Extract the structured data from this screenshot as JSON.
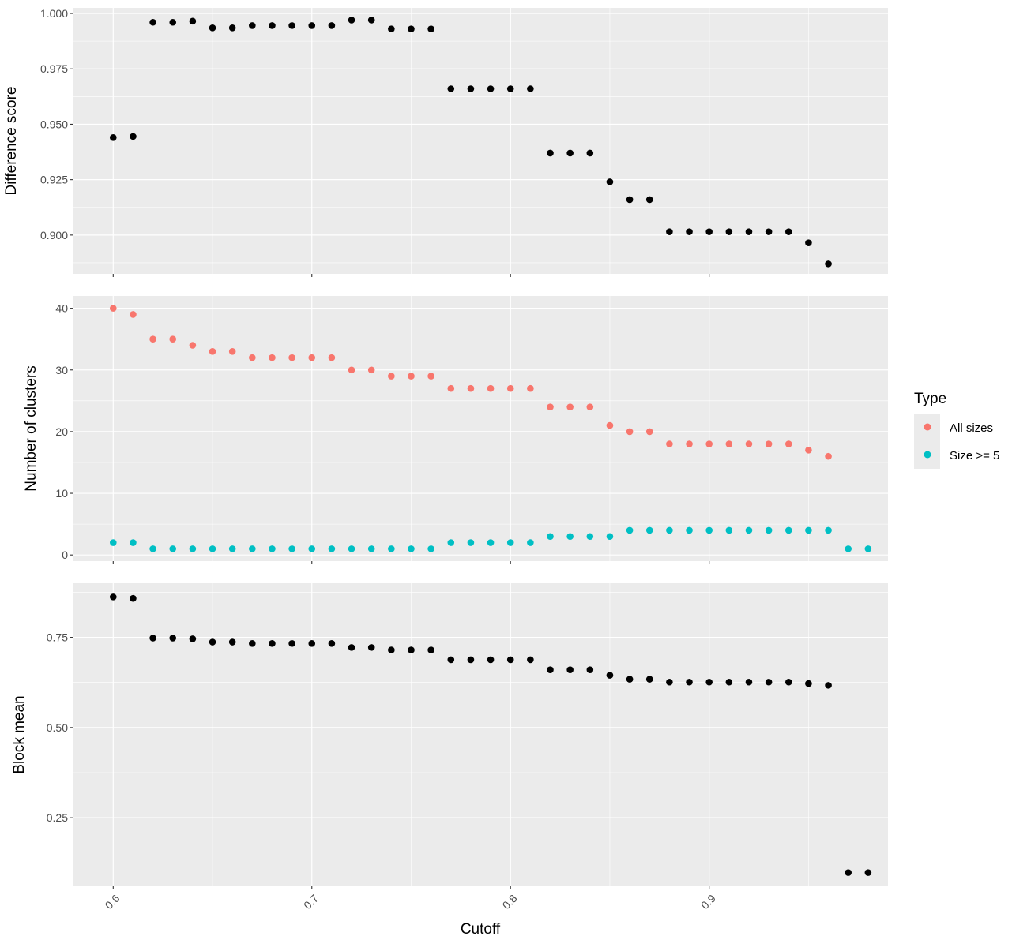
{
  "x_axis": {
    "title": "Cutoff"
  },
  "legend": {
    "title": "Type",
    "placement": "right"
  },
  "colors": {
    "panel_bg": "#EBEBEB",
    "grid": "#FFFFFF",
    "tick": "#333333",
    "tick_text": "#4D4D4D",
    "black": "#000000"
  },
  "chart_data": [
    {
      "type": "scatter",
      "panel": 1,
      "ylabel": "Difference score",
      "xlim": [
        0.58,
        0.99
      ],
      "ylim": [
        0.8825,
        1.0025
      ],
      "xticks": [
        0.6,
        0.7,
        0.8,
        0.9
      ],
      "yticks": [
        0.9,
        0.925,
        0.95,
        0.975,
        1.0
      ],
      "ytick_labels": [
        "0.900",
        "0.925",
        "0.950",
        "0.975",
        "1.000"
      ],
      "grid": true,
      "series": [
        {
          "color": "#000000",
          "x": [
            0.6,
            0.61,
            0.62,
            0.63,
            0.64,
            0.65,
            0.66,
            0.67,
            0.68,
            0.69,
            0.7,
            0.71,
            0.72,
            0.73,
            0.74,
            0.75,
            0.76,
            0.77,
            0.78,
            0.79,
            0.8,
            0.81,
            0.82,
            0.83,
            0.84,
            0.85,
            0.86,
            0.87,
            0.88,
            0.89,
            0.9,
            0.91,
            0.92,
            0.93,
            0.94,
            0.95,
            0.96
          ],
          "y": [
            0.944,
            0.9445,
            0.996,
            0.996,
            0.9965,
            0.9935,
            0.9935,
            0.9945,
            0.9945,
            0.9945,
            0.9945,
            0.9945,
            0.997,
            0.997,
            0.993,
            0.993,
            0.993,
            0.966,
            0.966,
            0.966,
            0.966,
            0.966,
            0.937,
            0.937,
            0.937,
            0.924,
            0.916,
            0.916,
            0.9015,
            0.9015,
            0.9015,
            0.9015,
            0.9015,
            0.9015,
            0.9015,
            0.8965,
            0.887
          ]
        }
      ]
    },
    {
      "type": "scatter",
      "panel": 2,
      "ylabel": "Number of clusters",
      "xlim": [
        0.58,
        0.99
      ],
      "ylim": [
        -1,
        42
      ],
      "xticks": [
        0.6,
        0.7,
        0.8,
        0.9
      ],
      "yticks": [
        0,
        10,
        20,
        30,
        40
      ],
      "ytick_labels": [
        "0",
        "10",
        "20",
        "30",
        "40"
      ],
      "grid": true,
      "series": [
        {
          "name": "All sizes",
          "color": "#F8766D",
          "x": [
            0.6,
            0.61,
            0.62,
            0.63,
            0.64,
            0.65,
            0.66,
            0.67,
            0.68,
            0.69,
            0.7,
            0.71,
            0.72,
            0.73,
            0.74,
            0.75,
            0.76,
            0.77,
            0.78,
            0.79,
            0.8,
            0.81,
            0.82,
            0.83,
            0.84,
            0.85,
            0.86,
            0.87,
            0.88,
            0.89,
            0.9,
            0.91,
            0.92,
            0.93,
            0.94,
            0.95,
            0.96
          ],
          "y": [
            40,
            39,
            35,
            35,
            34,
            33,
            33,
            32,
            32,
            32,
            32,
            32,
            30,
            30,
            29,
            29,
            29,
            27,
            27,
            27,
            27,
            27,
            24,
            24,
            24,
            21,
            20,
            20,
            18,
            18,
            18,
            18,
            18,
            18,
            18,
            17,
            16
          ]
        },
        {
          "name": "Size >= 5",
          "color": "#00BFC4",
          "x": [
            0.6,
            0.61,
            0.62,
            0.63,
            0.64,
            0.65,
            0.66,
            0.67,
            0.68,
            0.69,
            0.7,
            0.71,
            0.72,
            0.73,
            0.74,
            0.75,
            0.76,
            0.77,
            0.78,
            0.79,
            0.8,
            0.81,
            0.82,
            0.83,
            0.84,
            0.85,
            0.86,
            0.87,
            0.88,
            0.89,
            0.9,
            0.91,
            0.92,
            0.93,
            0.94,
            0.95,
            0.96,
            0.97,
            0.98
          ],
          "y": [
            2,
            2,
            1,
            1,
            1,
            1,
            1,
            1,
            1,
            1,
            1,
            1,
            1,
            1,
            1,
            1,
            1,
            2,
            2,
            2,
            2,
            2,
            3,
            3,
            3,
            3,
            4,
            4,
            4,
            4,
            4,
            4,
            4,
            4,
            4,
            4,
            4,
            1,
            1
          ]
        }
      ]
    },
    {
      "type": "scatter",
      "panel": 3,
      "ylabel": "Block mean",
      "xlim": [
        0.58,
        0.99
      ],
      "ylim": [
        0.06,
        0.9
      ],
      "xticks": [
        0.6,
        0.7,
        0.8,
        0.9
      ],
      "xtick_labels": [
        "0.6",
        "0.7",
        "0.8",
        "0.9"
      ],
      "yticks": [
        0.25,
        0.5,
        0.75
      ],
      "ytick_labels": [
        "0.25",
        "0.50",
        "0.75"
      ],
      "grid": true,
      "series": [
        {
          "color": "#000000",
          "x": [
            0.6,
            0.61,
            0.62,
            0.63,
            0.64,
            0.65,
            0.66,
            0.67,
            0.68,
            0.69,
            0.7,
            0.71,
            0.72,
            0.73,
            0.74,
            0.75,
            0.76,
            0.77,
            0.78,
            0.79,
            0.8,
            0.81,
            0.82,
            0.83,
            0.84,
            0.85,
            0.86,
            0.87,
            0.88,
            0.89,
            0.9,
            0.91,
            0.92,
            0.93,
            0.94,
            0.95,
            0.96,
            0.97,
            0.98
          ],
          "y": [
            0.862,
            0.858,
            0.748,
            0.748,
            0.746,
            0.737,
            0.737,
            0.733,
            0.733,
            0.733,
            0.733,
            0.733,
            0.722,
            0.722,
            0.715,
            0.715,
            0.715,
            0.688,
            0.688,
            0.688,
            0.688,
            0.688,
            0.66,
            0.66,
            0.66,
            0.645,
            0.634,
            0.634,
            0.626,
            0.626,
            0.626,
            0.626,
            0.626,
            0.626,
            0.626,
            0.622,
            0.617,
            0.098,
            0.098
          ]
        }
      ]
    }
  ]
}
